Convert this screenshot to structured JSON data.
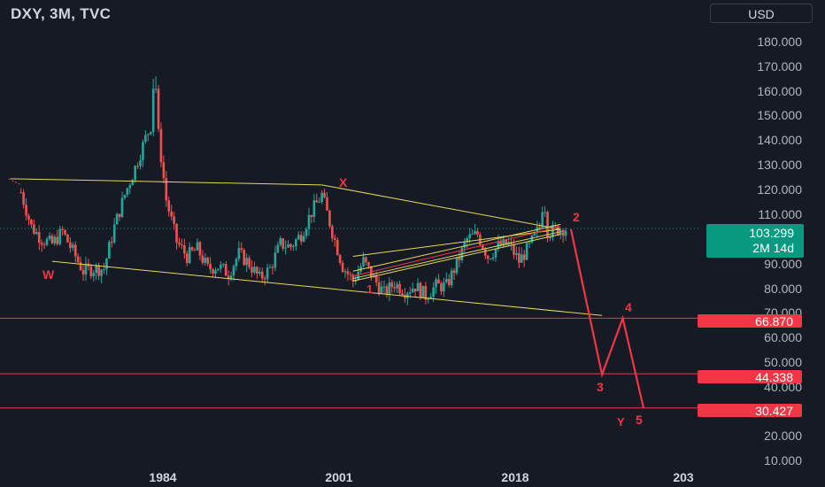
{
  "header": {
    "title": "DXY, 3M, TVC",
    "currency_button": "USD"
  },
  "price_axis": {
    "ticks": [
      "180.000",
      "170.000",
      "160.000",
      "150.000",
      "140.000",
      "130.000",
      "120.000",
      "110.000",
      "103.299",
      "90.000",
      "80.000",
      "70.000",
      "66.870",
      "60.000",
      "50.000",
      "44.338",
      "40.000",
      "30.427",
      "20.000",
      "10.000"
    ],
    "current_price": "103.299",
    "countdown": "2M 14d",
    "levels": [
      "66.870",
      "44.338",
      "30.427"
    ]
  },
  "time_axis": {
    "ticks": [
      "1984",
      "2001",
      "2018",
      "203"
    ]
  },
  "wave_labels": {
    "w": "W",
    "x": "X",
    "y": "Y",
    "one": "1",
    "two": "2",
    "three": "3",
    "four": "4",
    "five": "5"
  },
  "chart_data": {
    "type": "candlestick",
    "symbol": "DXY",
    "interval": "3M",
    "source": "TVC",
    "ylim": [
      10,
      180
    ],
    "y_ticks": [
      10,
      20,
      30,
      40,
      50,
      60,
      70,
      80,
      90,
      110,
      120,
      130,
      140,
      150,
      160,
      170,
      180
    ],
    "x_ticks": [
      "1984",
      "2001",
      "2018",
      "203"
    ],
    "current_price": 103.299,
    "close_path": [
      [
        1971,
        120.5
      ],
      [
        1972,
        118
      ],
      [
        1973,
        104
      ],
      [
        1974,
        99
      ],
      [
        1975,
        97
      ],
      [
        1976,
        102
      ],
      [
        1977,
        94
      ],
      [
        1978,
        86
      ],
      [
        1979,
        87
      ],
      [
        1980,
        87
      ],
      [
        1981,
        104
      ],
      [
        1982,
        117
      ],
      [
        1983,
        128
      ],
      [
        1984,
        140
      ],
      [
        1985,
        150
      ],
      [
        1986,
        115
      ],
      [
        1987,
        98
      ],
      [
        1988,
        92
      ],
      [
        1989,
        95
      ],
      [
        1990,
        87
      ],
      [
        1991,
        88
      ],
      [
        1992,
        85
      ],
      [
        1993,
        93
      ],
      [
        1994,
        89
      ],
      [
        1995,
        83
      ],
      [
        1996,
        87
      ],
      [
        1997,
        97
      ],
      [
        1998,
        96
      ],
      [
        1999,
        101
      ],
      [
        2000,
        110
      ],
      [
        2001,
        117
      ],
      [
        2002,
        102
      ],
      [
        2003,
        88
      ],
      [
        2004,
        82
      ],
      [
        2005,
        90
      ],
      [
        2006,
        83
      ],
      [
        2007,
        77
      ],
      [
        2008,
        81
      ],
      [
        2009,
        78
      ],
      [
        2010,
        80
      ],
      [
        2011,
        76
      ],
      [
        2012,
        80
      ],
      [
        2013,
        80
      ],
      [
        2014,
        89
      ],
      [
        2015,
        99
      ],
      [
        2016,
        101
      ],
      [
        2017,
        92
      ],
      [
        2018,
        96
      ],
      [
        2019,
        97
      ],
      [
        2020,
        90
      ],
      [
        2021,
        96
      ],
      [
        2022,
        104
      ],
      [
        2023,
        102
      ],
      [
        2024,
        103.3
      ]
    ],
    "projection": [
      [
        2025,
        103
      ],
      [
        2028,
        44
      ],
      [
        2030,
        66.87
      ],
      [
        2032,
        30.427
      ]
    ],
    "horizontal_levels": [
      66.87,
      44.338,
      30.427
    ],
    "trendlines": [
      [
        [
          1971,
          123.5
        ],
        [
          2001,
          121
        ]
      ],
      [
        [
          2001,
          121
        ],
        [
          2024,
          103
        ]
      ],
      [
        [
          1975,
          90
        ],
        [
          2028,
          68
        ]
      ],
      [
        [
          2004,
          82
        ],
        [
          2024,
          101
        ]
      ],
      [
        [
          2004,
          86
        ],
        [
          2024,
          105
        ]
      ],
      [
        [
          2004,
          92
        ],
        [
          2024,
          103
        ]
      ],
      [
        [
          2004,
          83
        ],
        [
          2024,
          102
        ]
      ]
    ],
    "colors": {
      "up": "#26a69a",
      "down": "#ef5350",
      "trendline": "#e6d85a",
      "level": "#f23645",
      "projection": "#f23645",
      "price_tag": "#089981"
    }
  }
}
